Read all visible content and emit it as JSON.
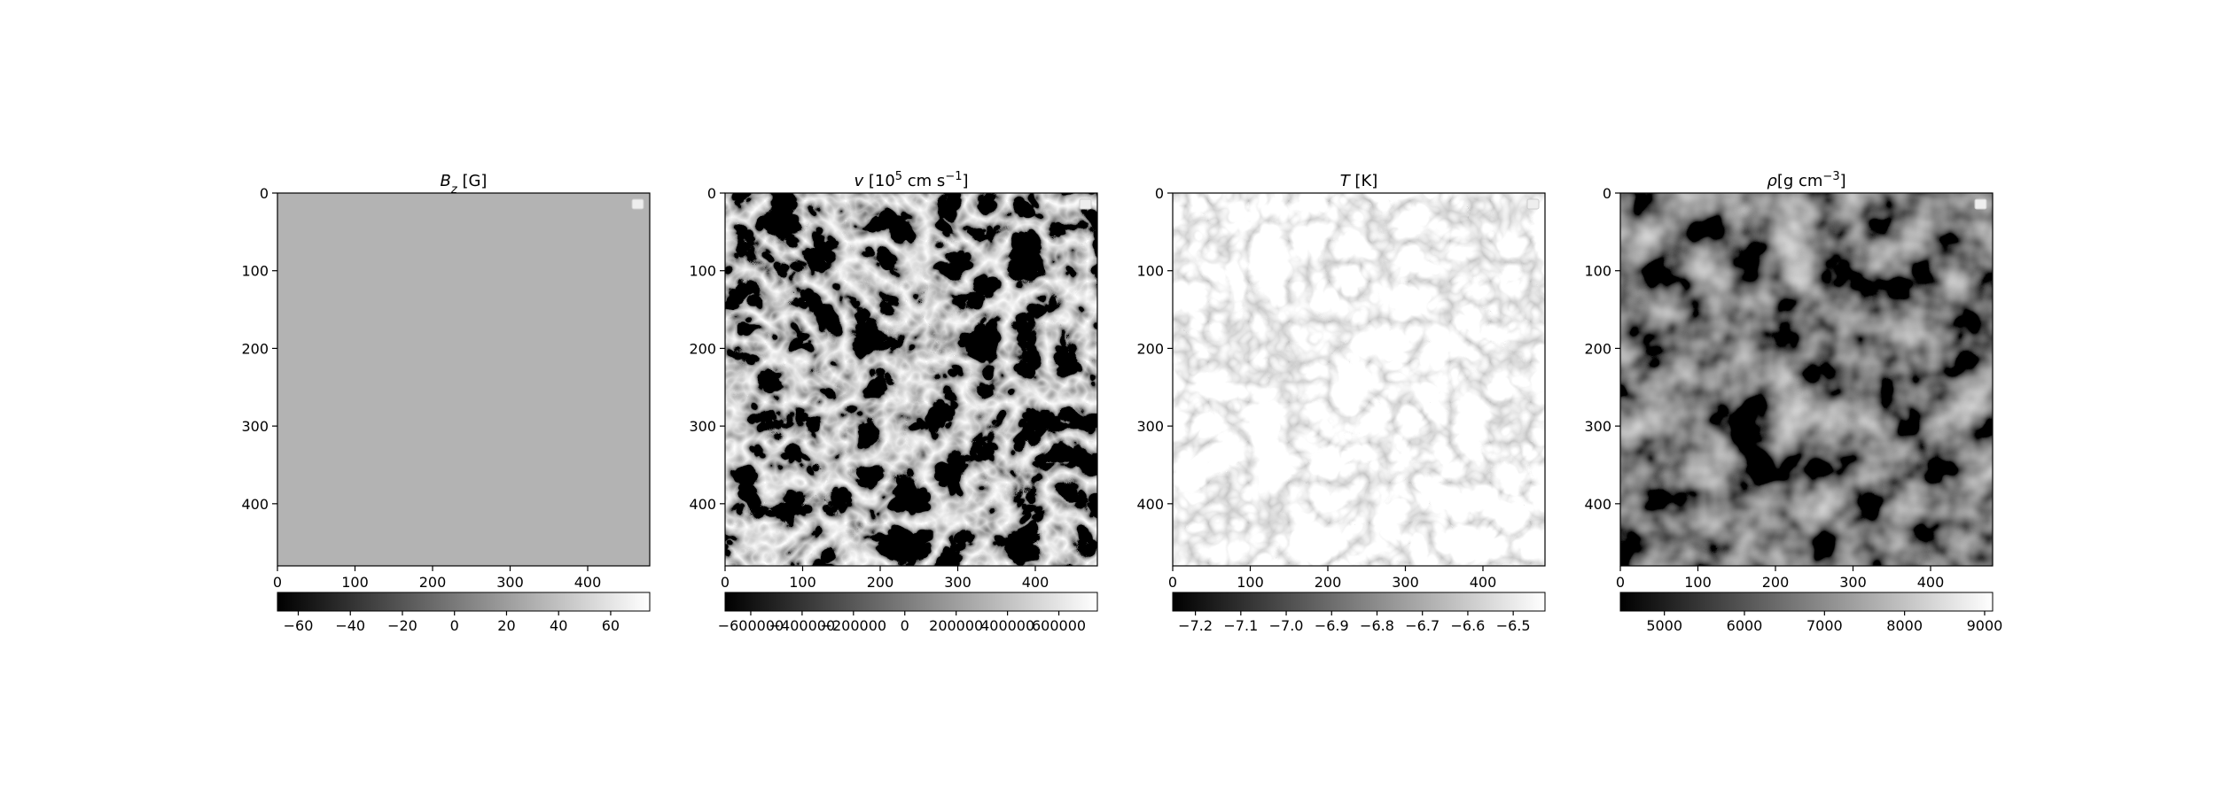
{
  "chart_data": [
    {
      "type": "image",
      "cmap": "gray",
      "legend": "upper right",
      "title": [
        {
          "text": "B",
          "style": "italic"
        },
        {
          "text": "z",
          "style": "sub-italic"
        },
        {
          "text": " [G]",
          "style": "normal"
        }
      ],
      "xlim": [
        0,
        480
      ],
      "ylim": [
        480,
        0
      ],
      "xticks": [
        0,
        100,
        200,
        300,
        400
      ],
      "yticks": [
        0,
        100,
        200,
        300,
        400
      ],
      "colorbar": {
        "lim": [
          -68,
          75
        ],
        "ticks": [
          {
            "value": -60,
            "label": "−60"
          },
          {
            "value": -40,
            "label": "−40"
          },
          {
            "value": -20,
            "label": "−20"
          },
          0,
          20,
          40,
          60
        ]
      }
    },
    {
      "type": "image",
      "cmap": "gray",
      "legend": "upper right",
      "title": [
        {
          "text": "v",
          "style": "italic"
        },
        {
          "text": " [10",
          "style": "normal"
        },
        {
          "text": "5",
          "style": "sup"
        },
        {
          "text": " cm s",
          "style": "normal"
        },
        {
          "text": "−1",
          "style": "sup"
        },
        {
          "text": "]",
          "style": "normal"
        }
      ],
      "xlim": [
        0,
        480
      ],
      "ylim": [
        480,
        0
      ],
      "xticks": [
        0,
        100,
        200,
        300,
        400
      ],
      "yticks": [
        0,
        100,
        200,
        300,
        400
      ],
      "colorbar": {
        "lim": [
          -700000,
          750000
        ],
        "ticks": [
          {
            "value": -600000,
            "label": "−600000"
          },
          {
            "value": -400000,
            "label": "−400000"
          },
          {
            "value": -200000,
            "label": "−200000"
          },
          0,
          200000,
          400000,
          600000
        ]
      }
    },
    {
      "type": "image",
      "cmap": "gray",
      "legend": "upper right",
      "title": [
        {
          "text": "T",
          "style": "italic"
        },
        {
          "text": " [K]",
          "style": "normal"
        }
      ],
      "xlim": [
        0,
        480
      ],
      "ylim": [
        480,
        0
      ],
      "xticks": [
        0,
        100,
        200,
        300,
        400
      ],
      "yticks": [
        0,
        100,
        200,
        300,
        400
      ],
      "colorbar": {
        "lim": [
          -7.25,
          -6.43
        ],
        "ticks": [
          {
            "value": -7.2,
            "label": "−7.2"
          },
          {
            "value": -7.1,
            "label": "−7.1"
          },
          {
            "value": -7.0,
            "label": "−7.0"
          },
          {
            "value": -6.9,
            "label": "−6.9"
          },
          {
            "value": -6.8,
            "label": "−6.8"
          },
          {
            "value": -6.7,
            "label": "−6.7"
          },
          {
            "value": -6.6,
            "label": "−6.6"
          },
          {
            "value": -6.5,
            "label": "−6.5"
          }
        ]
      }
    },
    {
      "type": "image",
      "cmap": "gray",
      "legend": "upper right",
      "title": [
        {
          "text": "ρ",
          "style": "italic"
        },
        {
          "text": "[g cm",
          "style": "normal"
        },
        {
          "text": "−3",
          "style": "sup"
        },
        {
          "text": "]",
          "style": "normal"
        }
      ],
      "xlim": [
        0,
        480
      ],
      "ylim": [
        480,
        0
      ],
      "xticks": [
        0,
        100,
        200,
        300,
        400
      ],
      "yticks": [
        0,
        100,
        200,
        300,
        400
      ],
      "colorbar": {
        "lim": [
          4450,
          9100
        ],
        "ticks": [
          5000,
          6000,
          7000,
          8000,
          9000
        ]
      }
    }
  ]
}
